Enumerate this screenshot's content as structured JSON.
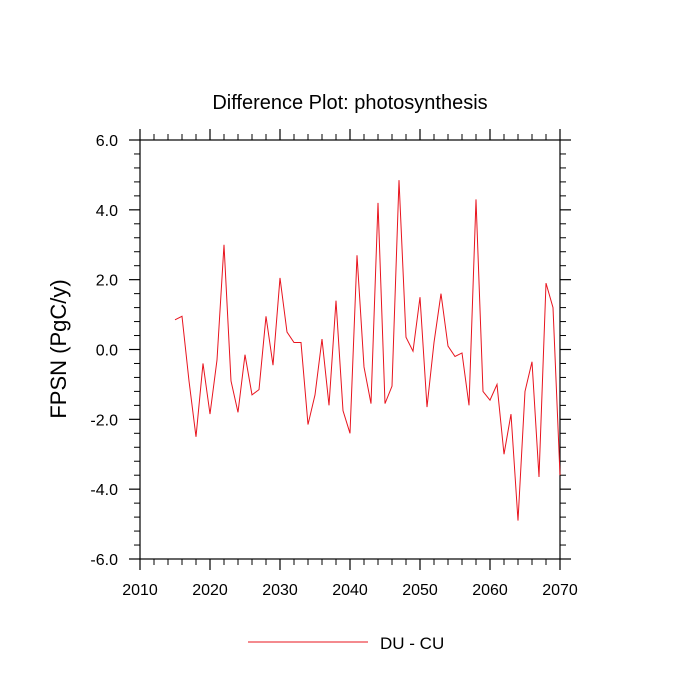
{
  "chart_data": {
    "type": "line",
    "title": "Difference Plot: photosynthesis",
    "xlabel": "",
    "ylabel": "FPSN  (PgC/y)",
    "xlim": [
      2010,
      2070
    ],
    "ylim": [
      -6.0,
      6.0
    ],
    "xticks": [
      2010,
      2020,
      2030,
      2040,
      2050,
      2060,
      2070
    ],
    "xtick_labels": [
      "2010",
      "2020",
      "2030",
      "2040",
      "2050",
      "2060",
      "2070"
    ],
    "yticks": [
      -6.0,
      -4.0,
      -2.0,
      0.0,
      2.0,
      4.0,
      6.0
    ],
    "ytick_labels": [
      "-6.0",
      "-4.0",
      "-2.0",
      "0.0",
      "2.0",
      "4.0",
      "6.0"
    ],
    "grid": false,
    "legend_position": "bottom-center",
    "series": [
      {
        "name": "DU - CU",
        "color": "#e8141e",
        "x": [
          2015,
          2016,
          2017,
          2018,
          2019,
          2020,
          2021,
          2022,
          2023,
          2024,
          2025,
          2026,
          2027,
          2028,
          2029,
          2030,
          2031,
          2032,
          2033,
          2034,
          2035,
          2036,
          2037,
          2038,
          2039,
          2040,
          2041,
          2042,
          2043,
          2044,
          2045,
          2046,
          2047,
          2048,
          2049,
          2050,
          2051,
          2052,
          2053,
          2054,
          2055,
          2056,
          2057,
          2058,
          2059,
          2060,
          2061,
          2062,
          2063,
          2064,
          2065,
          2066,
          2067,
          2068,
          2069,
          2070
        ],
        "values": [
          0.85,
          0.95,
          -0.9,
          -2.5,
          -0.4,
          -1.85,
          -0.3,
          3.0,
          -0.9,
          -1.8,
          -0.15,
          -1.3,
          -1.15,
          0.95,
          -0.45,
          2.05,
          0.5,
          0.2,
          0.2,
          -2.15,
          -1.3,
          0.3,
          -1.6,
          1.4,
          -1.75,
          -2.4,
          2.7,
          -0.5,
          -1.55,
          4.2,
          -1.55,
          -1.05,
          4.85,
          0.35,
          -0.05,
          1.5,
          -1.65,
          0.2,
          1.6,
          0.1,
          -0.2,
          -0.1,
          -1.6,
          4.3,
          -1.2,
          -1.45,
          -1.0,
          -3.0,
          -1.85,
          -4.9,
          -1.2,
          -0.35,
          -3.65,
          1.9,
          1.2,
          -3.6
        ]
      }
    ]
  }
}
